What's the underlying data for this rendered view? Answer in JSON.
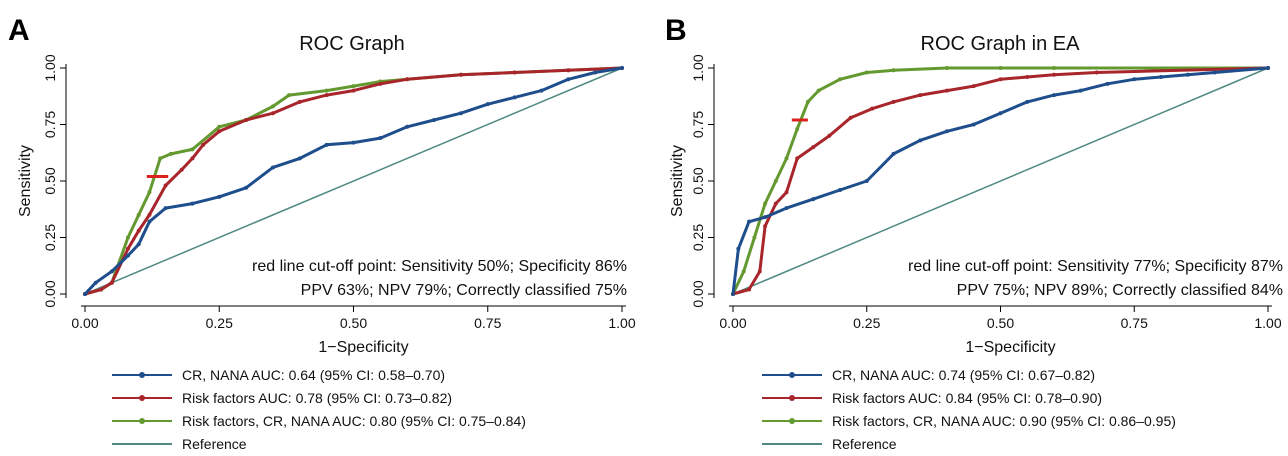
{
  "chart_data": [
    {
      "type": "line",
      "panel_letter": "A",
      "title": "ROC Graph",
      "xlabel": "1−Specificity",
      "ylabel": "Sensitivity",
      "xlim": [
        0,
        1
      ],
      "ylim": [
        0,
        1
      ],
      "x_ticks": [
        "0.00",
        "0.25",
        "0.50",
        "0.75",
        "1.00"
      ],
      "y_ticks": [
        "0.00",
        "0.25",
        "0.50",
        "0.75",
        "1.00"
      ],
      "grid": false,
      "legend_position": "bottom",
      "annotations": [
        "red line cut-off point: Sensitivity 50%; Specificity 86%",
        "PPV 63%; NPV 79%; Correctly classified 75%"
      ],
      "cutoff_marker": {
        "x": [
          0.115,
          0.155
        ],
        "y": 0.52,
        "color": "#d9231c"
      },
      "series": [
        {
          "name": "CR, NANA AUC: 0.64 (95% CI: 0.58–0.70)",
          "color": "#1f4e8c",
          "x": [
            0,
            0.02,
            0.05,
            0.08,
            0.1,
            0.12,
            0.15,
            0.2,
            0.25,
            0.3,
            0.35,
            0.4,
            0.45,
            0.5,
            0.55,
            0.6,
            0.65,
            0.7,
            0.75,
            0.8,
            0.85,
            0.9,
            0.95,
            1.0
          ],
          "y": [
            0,
            0.05,
            0.1,
            0.17,
            0.22,
            0.32,
            0.38,
            0.4,
            0.43,
            0.47,
            0.56,
            0.6,
            0.66,
            0.67,
            0.69,
            0.74,
            0.77,
            0.8,
            0.84,
            0.87,
            0.9,
            0.95,
            0.98,
            1.0
          ]
        },
        {
          "name": "Risk factors AUC: 0.78 (95% CI: 0.73–0.82)",
          "color": "#a8262b",
          "x": [
            0,
            0.03,
            0.05,
            0.08,
            0.1,
            0.12,
            0.15,
            0.18,
            0.2,
            0.22,
            0.25,
            0.3,
            0.35,
            0.4,
            0.45,
            0.5,
            0.55,
            0.6,
            0.7,
            0.8,
            0.9,
            1.0
          ],
          "y": [
            0,
            0.02,
            0.05,
            0.2,
            0.28,
            0.35,
            0.48,
            0.55,
            0.6,
            0.66,
            0.72,
            0.77,
            0.8,
            0.85,
            0.88,
            0.9,
            0.93,
            0.95,
            0.97,
            0.98,
            0.99,
            1.0
          ]
        },
        {
          "name": "Risk factors, CR, NANA AUC: 0.80 (95% CI: 0.75–0.84)",
          "color": "#63992f",
          "x": [
            0,
            0.03,
            0.05,
            0.08,
            0.1,
            0.12,
            0.14,
            0.16,
            0.2,
            0.25,
            0.3,
            0.35,
            0.38,
            0.45,
            0.5,
            0.55,
            0.6,
            0.7,
            0.8,
            0.9,
            1.0
          ],
          "y": [
            0,
            0.02,
            0.05,
            0.25,
            0.35,
            0.45,
            0.6,
            0.62,
            0.64,
            0.74,
            0.77,
            0.83,
            0.88,
            0.9,
            0.92,
            0.94,
            0.95,
            0.97,
            0.98,
            0.99,
            1.0
          ]
        },
        {
          "name": "Reference",
          "color": "#4f8a82",
          "x": [
            0,
            1
          ],
          "y": [
            0,
            1
          ]
        }
      ]
    },
    {
      "type": "line",
      "panel_letter": "B",
      "title": "ROC Graph in EA",
      "xlabel": "1−Specificity",
      "ylabel": "Sensitivity",
      "xlim": [
        0,
        1
      ],
      "ylim": [
        0,
        1
      ],
      "x_ticks": [
        "0.00",
        "0.25",
        "0.50",
        "0.75",
        "1.00"
      ],
      "y_ticks": [
        "0.00",
        "0.25",
        "0.50",
        "0.75",
        "1.00"
      ],
      "grid": false,
      "legend_position": "bottom",
      "annotations": [
        "red line cut-off point: Sensitivity 77%; Specificity 87%",
        "PPV 75%; NPV 89%; Correctly classified 84%"
      ],
      "cutoff_marker": {
        "x": [
          0.11,
          0.14
        ],
        "y": 0.77,
        "color": "#d9231c"
      },
      "series": [
        {
          "name": "CR, NANA AUC: 0.74 (95% CI: 0.67–0.82)",
          "color": "#1f4e8c",
          "x": [
            0,
            0.01,
            0.03,
            0.06,
            0.1,
            0.15,
            0.2,
            0.25,
            0.3,
            0.35,
            0.4,
            0.45,
            0.5,
            0.55,
            0.6,
            0.65,
            0.7,
            0.75,
            0.8,
            0.85,
            0.9,
            1.0
          ],
          "y": [
            0,
            0.2,
            0.32,
            0.34,
            0.38,
            0.42,
            0.46,
            0.5,
            0.62,
            0.68,
            0.72,
            0.75,
            0.8,
            0.85,
            0.88,
            0.9,
            0.93,
            0.95,
            0.96,
            0.97,
            0.98,
            1.0
          ]
        },
        {
          "name": "Risk factors AUC: 0.84 (95% CI: 0.78–0.90)",
          "color": "#a8262b",
          "x": [
            0,
            0.03,
            0.05,
            0.06,
            0.08,
            0.1,
            0.12,
            0.15,
            0.18,
            0.22,
            0.26,
            0.3,
            0.35,
            0.4,
            0.45,
            0.5,
            0.55,
            0.6,
            0.68,
            1.0
          ],
          "y": [
            0,
            0.02,
            0.1,
            0.3,
            0.4,
            0.45,
            0.6,
            0.65,
            0.7,
            0.78,
            0.82,
            0.85,
            0.88,
            0.9,
            0.92,
            0.95,
            0.96,
            0.97,
            0.98,
            1.0
          ]
        },
        {
          "name": "Risk factors, CR, NANA AUC: 0.90 (95% CI: 0.86–0.95)",
          "color": "#63992f",
          "x": [
            0,
            0.02,
            0.04,
            0.06,
            0.08,
            0.1,
            0.12,
            0.14,
            0.16,
            0.2,
            0.25,
            0.3,
            0.4,
            0.5,
            0.6,
            1.0
          ],
          "y": [
            0,
            0.1,
            0.25,
            0.4,
            0.5,
            0.6,
            0.73,
            0.85,
            0.9,
            0.95,
            0.98,
            0.99,
            1.0,
            1.0,
            1.0,
            1.0
          ]
        },
        {
          "name": "Reference",
          "color": "#4f8a82",
          "x": [
            0,
            1
          ],
          "y": [
            0,
            1
          ]
        }
      ]
    }
  ]
}
